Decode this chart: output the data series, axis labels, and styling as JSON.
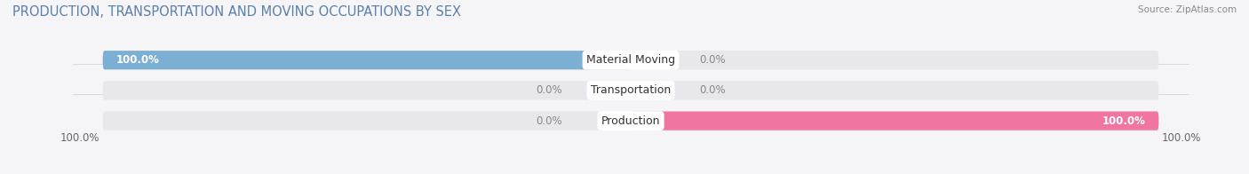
{
  "title": "PRODUCTION, TRANSPORTATION AND MOVING OCCUPATIONS BY SEX",
  "source": "Source: ZipAtlas.com",
  "categories": [
    "Material Moving",
    "Transportation",
    "Production"
  ],
  "male_values": [
    100.0,
    0.0,
    0.0
  ],
  "female_values": [
    0.0,
    0.0,
    100.0
  ],
  "male_color": "#7bafd4",
  "female_color": "#f075a0",
  "bar_bg_color": "#e8e8ec",
  "bar_height": 0.62,
  "figsize": [
    14.06,
    1.96
  ],
  "dpi": 100,
  "title_fontsize": 10.5,
  "label_fontsize": 8.5,
  "source_fontsize": 7.5,
  "legend_fontsize": 9,
  "axis_label_left": "100.0%",
  "axis_label_right": "100.0%",
  "background_color": "#f5f5f8",
  "title_color": "#5a7fa8",
  "source_color": "#888888",
  "value_color_inside": "white",
  "value_color_outside": "#888888",
  "cat_label_color": "#333333"
}
